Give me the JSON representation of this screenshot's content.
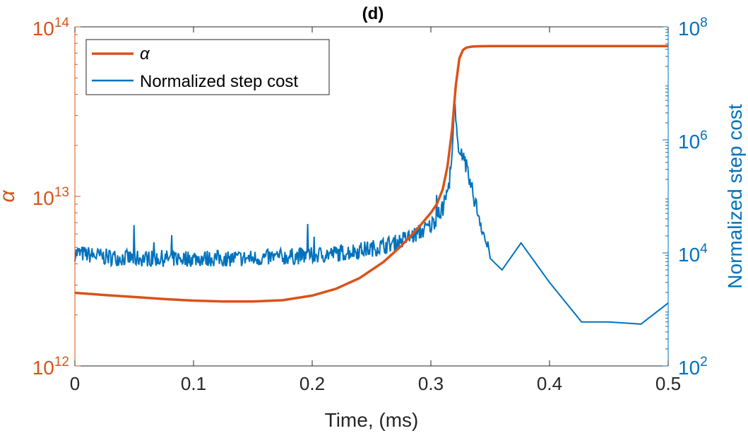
{
  "chart_data": {
    "type": "line",
    "title": "(d)",
    "xlabel": "Time, (ms)",
    "ylabel_left": "α",
    "ylabel_right": "Normalized step cost",
    "xlim": [
      0,
      0.5
    ],
    "x_ticks": [
      {
        "value": 0,
        "label": "0"
      },
      {
        "value": 0.1,
        "label": "0.1"
      },
      {
        "value": 0.2,
        "label": "0.2"
      },
      {
        "value": 0.3,
        "label": "0.3"
      },
      {
        "value": 0.4,
        "label": "0.4"
      },
      {
        "value": 0.5,
        "label": "0.5"
      }
    ],
    "left_axis": {
      "scale": "log",
      "ylim": [
        1000000000000.0,
        100000000000000.0
      ],
      "ticks": [
        {
          "value": 1000000000000.0,
          "base": "10",
          "exp": "12"
        },
        {
          "value": 10000000000000.0,
          "base": "10",
          "exp": "13"
        },
        {
          "value": 100000000000000.0,
          "base": "10",
          "exp": "14"
        }
      ]
    },
    "right_axis": {
      "scale": "log",
      "ylim": [
        100,
        100000000
      ],
      "ticks": [
        {
          "value": 100,
          "base": "10",
          "exp": "2"
        },
        {
          "value": 10000,
          "base": "10",
          "exp": "4"
        },
        {
          "value": 1000000,
          "base": "10",
          "exp": "6"
        },
        {
          "value": 100000000,
          "base": "10",
          "exp": "8"
        }
      ]
    },
    "legend": {
      "placement": "top-left"
    },
    "colors": {
      "alpha": "#D95319",
      "step_cost": "#0072BD",
      "axis": "#262626"
    },
    "series": [
      {
        "name": "α",
        "axis": "left",
        "x": [
          0,
          0.025,
          0.05,
          0.075,
          0.1,
          0.125,
          0.15,
          0.175,
          0.2,
          0.22,
          0.24,
          0.26,
          0.275,
          0.29,
          0.3,
          0.305,
          0.31,
          0.314,
          0.318,
          0.321,
          0.324,
          0.327,
          0.33,
          0.335,
          0.34,
          0.35,
          0.4,
          0.45,
          0.5
        ],
        "y": [
          2700000000000.0,
          2620000000000.0,
          2550000000000.0,
          2480000000000.0,
          2430000000000.0,
          2400000000000.0,
          2400000000000.0,
          2440000000000.0,
          2600000000000.0,
          2850000000000.0,
          3300000000000.0,
          4100000000000.0,
          5100000000000.0,
          6600000000000.0,
          8000000000000.0,
          9000000000000.0,
          11000000000000.0,
          15000000000000.0,
          25000000000000.0,
          45000000000000.0,
          65000000000000.0,
          73000000000000.0,
          75500000000000.0,
          76500000000000.0,
          76800000000000.0,
          77000000000000.0,
          77000000000000.0,
          77000000000000.0,
          77000000000000.0
        ]
      },
      {
        "name": "Normalized step cost",
        "axis": "right",
        "x": [
          0,
          0.025,
          0.05,
          0.075,
          0.1,
          0.125,
          0.15,
          0.175,
          0.2,
          0.225,
          0.25,
          0.27,
          0.285,
          0.3,
          0.31,
          0.315,
          0.318,
          0.32,
          0.322,
          0.325,
          0.33,
          0.335,
          0.34,
          0.345,
          0.35,
          0.356,
          0.36,
          0.376,
          0.4,
          0.427,
          0.45,
          0.477,
          0.5
        ],
        "y": [
          10000,
          8500,
          8000,
          8000,
          8000,
          8000,
          8000,
          8500,
          9000,
          10000,
          12000,
          15000,
          20000,
          30000,
          60000,
          150000,
          500000,
          4500000,
          1000000,
          700000,
          300000,
          120000,
          50000,
          20000,
          8000,
          6000,
          5000,
          15000,
          3000,
          600,
          600,
          550,
          1300
        ]
      }
    ]
  }
}
